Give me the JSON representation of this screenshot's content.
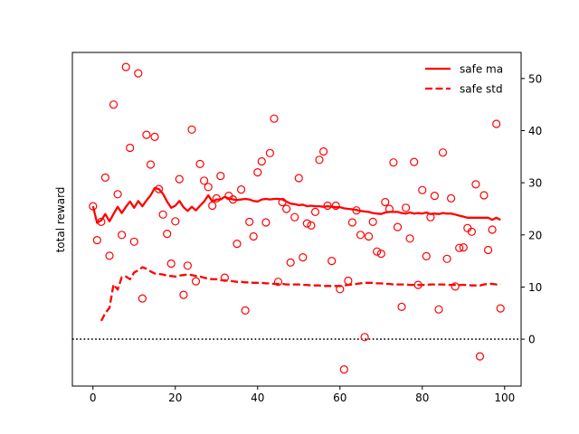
{
  "chart_data": {
    "type": "scatter",
    "title": "",
    "xlabel": "",
    "ylabel": "total reward",
    "xlim": [
      -5,
      104
    ],
    "ylim": [
      -9,
      55
    ],
    "x_ticks": [
      0,
      20,
      40,
      60,
      80,
      100
    ],
    "y_ticks": [
      0,
      10,
      20,
      30,
      40,
      50
    ],
    "y_axis_side": "right",
    "y_label_side": "left",
    "grid": false,
    "legend": {
      "position": "top-right"
    },
    "color": "#ff0000",
    "reference_line": {
      "y": 0,
      "style": "dotted",
      "color": "#000000"
    },
    "series": [
      {
        "name": "safe ma",
        "kind": "line",
        "style": "solid",
        "x": [
          0,
          1,
          2,
          3,
          4,
          5,
          6,
          7,
          8,
          9,
          10,
          11,
          12,
          13,
          14,
          15,
          16,
          17,
          18,
          19,
          20,
          21,
          22,
          23,
          24,
          25,
          26,
          27,
          28,
          29,
          30,
          31,
          32,
          33,
          34,
          35,
          36,
          37,
          38,
          39,
          40,
          41,
          42,
          43,
          44,
          45,
          46,
          47,
          48,
          49,
          50,
          51,
          52,
          53,
          54,
          55,
          56,
          57,
          58,
          59,
          60,
          61,
          62,
          63,
          64,
          65,
          66,
          67,
          68,
          69,
          70,
          71,
          72,
          73,
          74,
          75,
          76,
          77,
          78,
          79,
          80,
          81,
          82,
          83,
          84,
          85,
          86,
          87,
          88,
          89,
          90,
          91,
          92,
          93,
          94,
          95,
          96,
          97,
          98,
          99
        ],
        "y": [
          25.5,
          22.3,
          22.8,
          24.0,
          22.6,
          24.0,
          25.4,
          24.2,
          25.4,
          26.4,
          25.2,
          26.5,
          25.5,
          26.6,
          27.6,
          29.0,
          28.8,
          27.9,
          26.4,
          25.2,
          25.6,
          26.5,
          25.3,
          24.6,
          25.4,
          24.7,
          25.6,
          26.4,
          27.6,
          26.4,
          26.8,
          26.8,
          27.3,
          27.0,
          26.8,
          26.7,
          26.8,
          26.9,
          26.8,
          26.5,
          26.4,
          26.8,
          26.9,
          26.8,
          26.9,
          26.9,
          26.8,
          26.4,
          26.0,
          25.9,
          25.7,
          25.8,
          25.5,
          25.6,
          25.5,
          25.5,
          25.4,
          25.5,
          25.4,
          25.3,
          25.3,
          25.1,
          25.0,
          24.9,
          24.8,
          24.6,
          24.5,
          24.4,
          24.2,
          24.1,
          24.0,
          24.3,
          24.4,
          24.4,
          24.4,
          24.2,
          24.1,
          24.3,
          24.1,
          24.2,
          24.1,
          24.3,
          24.0,
          24.1,
          24.0,
          24.2,
          24.1,
          24.1,
          23.9,
          23.7,
          23.5,
          23.3,
          23.3,
          23.3,
          23.3,
          23.3,
          23.3,
          22.9,
          23.3,
          22.9
        ]
      },
      {
        "name": "safe std",
        "kind": "line",
        "style": "dashed",
        "x": [
          2,
          3,
          4,
          5,
          6,
          7,
          8,
          9,
          10,
          11,
          12,
          13,
          14,
          15,
          16,
          17,
          18,
          19,
          20,
          21,
          22,
          23,
          24,
          25,
          26,
          27,
          28,
          29,
          30,
          31,
          32,
          33,
          34,
          35,
          36,
          37,
          38,
          39,
          40,
          41,
          42,
          43,
          44,
          45,
          46,
          47,
          48,
          49,
          50,
          51,
          52,
          53,
          54,
          55,
          56,
          57,
          58,
          59,
          60,
          61,
          62,
          63,
          64,
          65,
          66,
          67,
          68,
          69,
          70,
          71,
          72,
          73,
          74,
          75,
          76,
          77,
          78,
          79,
          80,
          81,
          82,
          83,
          84,
          85,
          86,
          87,
          88,
          89,
          90,
          91,
          92,
          93,
          94,
          95,
          96,
          97,
          98,
          99
        ],
        "y": [
          3.5,
          5.0,
          6.0,
          10.5,
          9.5,
          11.9,
          12.0,
          11.5,
          12.8,
          13.2,
          13.8,
          13.5,
          13.0,
          12.6,
          12.5,
          12.4,
          12.2,
          12.1,
          12.0,
          12.2,
          12.3,
          12.4,
          12.3,
          12.1,
          12.0,
          11.8,
          11.6,
          11.5,
          11.5,
          11.3,
          11.3,
          11.2,
          11.1,
          11.0,
          11.0,
          10.9,
          10.9,
          10.8,
          10.8,
          10.8,
          10.7,
          10.7,
          10.6,
          10.6,
          10.6,
          10.5,
          10.5,
          10.5,
          10.5,
          10.4,
          10.4,
          10.3,
          10.3,
          10.3,
          10.2,
          10.2,
          10.2,
          10.2,
          10.2,
          10.3,
          10.4,
          10.5,
          10.6,
          10.7,
          10.8,
          10.8,
          10.8,
          10.7,
          10.7,
          10.6,
          10.6,
          10.5,
          10.5,
          10.5,
          10.5,
          10.4,
          10.4,
          10.4,
          10.4,
          10.4,
          10.5,
          10.5,
          10.5,
          10.5,
          10.4,
          10.4,
          10.4,
          10.4,
          10.4,
          10.4,
          10.3,
          10.3,
          10.3,
          10.5,
          10.6,
          10.6,
          10.5,
          10.6
        ]
      },
      {
        "name": "",
        "kind": "scatter",
        "marker": "open-circle",
        "x": [
          0,
          1,
          2,
          3,
          4,
          5,
          6,
          7,
          8,
          9,
          10,
          11,
          12,
          13,
          14,
          15,
          16,
          17,
          18,
          19,
          20,
          21,
          22,
          23,
          24,
          25,
          26,
          27,
          28,
          29,
          30,
          31,
          32,
          33,
          34,
          35,
          36,
          37,
          38,
          39,
          40,
          41,
          42,
          43,
          44,
          45,
          46,
          47,
          48,
          49,
          50,
          51,
          52,
          53,
          54,
          55,
          56,
          57,
          58,
          59,
          60,
          61,
          62,
          63,
          64,
          65,
          66,
          67,
          68,
          69,
          70,
          71,
          72,
          73,
          74,
          75,
          76,
          77,
          78,
          79,
          80,
          81,
          82,
          83,
          84,
          85,
          86,
          87,
          88,
          89,
          90,
          91,
          92,
          93,
          94,
          95,
          96,
          97,
          98,
          99
        ],
        "y": [
          25.5,
          19,
          22.5,
          31,
          16,
          45,
          27.8,
          20,
          52.2,
          36.7,
          18.7,
          51,
          7.8,
          39.2,
          33.5,
          38.8,
          28.8,
          23.9,
          20.2,
          14.5,
          22.6,
          30.7,
          8.5,
          14.1,
          40.2,
          11.1,
          33.6,
          30.4,
          29.2,
          25.6,
          27,
          31.3,
          11.8,
          27.5,
          26.8,
          18.3,
          28.7,
          5.5,
          22.5,
          19.7,
          32,
          34.1,
          22.4,
          35.7,
          42.3,
          11,
          26.3,
          25,
          14.7,
          23.4,
          30.9,
          15.7,
          22.2,
          21.8,
          24.4,
          34.4,
          36,
          25.6,
          15,
          25.6,
          9.6,
          -5.8,
          11.2,
          22.4,
          24.7,
          20,
          0.4,
          19.7,
          22.5,
          16.8,
          16.4,
          26.3,
          25,
          33.9,
          21.5,
          6.2,
          25.2,
          19.3,
          34,
          10.4,
          28.6,
          15.9,
          23.4,
          27.5,
          5.7,
          35.8,
          15.4,
          27,
          10.1,
          17.5,
          17.6,
          21.3,
          20.6,
          29.7,
          -3.3,
          27.6,
          17.1,
          21,
          41.3,
          5.9
        ]
      }
    ]
  }
}
